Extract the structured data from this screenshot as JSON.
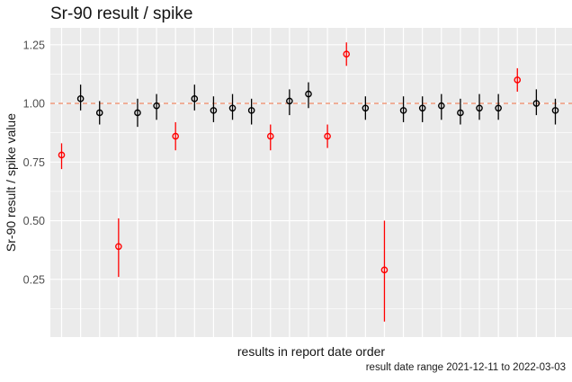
{
  "chart_data": {
    "type": "scatter",
    "title": "Sr-90 result / spike",
    "xlabel": "results in report date order",
    "ylabel": "Sr-90 result / spike value",
    "caption": "result date range 2021-12-11 to 2022-03-03",
    "y_ticks": [
      1.25,
      1.0,
      0.75,
      0.5,
      0.25
    ],
    "y_tick_labels": [
      "1.25",
      "1.00",
      "0.75",
      "0.50",
      "0.25"
    ],
    "ylim": [
      0.0,
      1.32
    ],
    "x_count": 27,
    "grid": "on",
    "legend": "none",
    "reference_line": {
      "y": 1.0,
      "style": "dashed",
      "color": "#F09372"
    },
    "points": [
      {
        "x": 1,
        "y": 0.78,
        "ymin": 0.72,
        "ymax": 0.83,
        "group": "red"
      },
      {
        "x": 2,
        "y": 1.02,
        "ymin": 0.97,
        "ymax": 1.08,
        "group": "black"
      },
      {
        "x": 3,
        "y": 0.96,
        "ymin": 0.91,
        "ymax": 1.01,
        "group": "black"
      },
      {
        "x": 4,
        "y": 0.39,
        "ymin": 0.26,
        "ymax": 0.51,
        "group": "red"
      },
      {
        "x": 5,
        "y": 0.96,
        "ymin": 0.9,
        "ymax": 1.02,
        "group": "black"
      },
      {
        "x": 6,
        "y": 0.99,
        "ymin": 0.93,
        "ymax": 1.04,
        "group": "black"
      },
      {
        "x": 7,
        "y": 0.86,
        "ymin": 0.8,
        "ymax": 0.92,
        "group": "red"
      },
      {
        "x": 8,
        "y": 1.02,
        "ymin": 0.97,
        "ymax": 1.08,
        "group": "black"
      },
      {
        "x": 9,
        "y": 0.97,
        "ymin": 0.92,
        "ymax": 1.03,
        "group": "black"
      },
      {
        "x": 10,
        "y": 0.98,
        "ymin": 0.93,
        "ymax": 1.04,
        "group": "black"
      },
      {
        "x": 11,
        "y": 0.97,
        "ymin": 0.91,
        "ymax": 1.02,
        "group": "black"
      },
      {
        "x": 12,
        "y": 0.86,
        "ymin": 0.8,
        "ymax": 0.91,
        "group": "red"
      },
      {
        "x": 13,
        "y": 1.01,
        "ymin": 0.95,
        "ymax": 1.06,
        "group": "black"
      },
      {
        "x": 14,
        "y": 1.04,
        "ymin": 0.98,
        "ymax": 1.09,
        "group": "black"
      },
      {
        "x": 15,
        "y": 0.86,
        "ymin": 0.81,
        "ymax": 0.91,
        "group": "red"
      },
      {
        "x": 16,
        "y": 1.21,
        "ymin": 1.16,
        "ymax": 1.26,
        "group": "red"
      },
      {
        "x": 17,
        "y": 0.98,
        "ymin": 0.93,
        "ymax": 1.03,
        "group": "black"
      },
      {
        "x": 18,
        "y": 0.29,
        "ymin": 0.07,
        "ymax": 0.5,
        "group": "red"
      },
      {
        "x": 19,
        "y": 0.97,
        "ymin": 0.92,
        "ymax": 1.03,
        "group": "black"
      },
      {
        "x": 20,
        "y": 0.98,
        "ymin": 0.92,
        "ymax": 1.03,
        "group": "black"
      },
      {
        "x": 21,
        "y": 0.99,
        "ymin": 0.93,
        "ymax": 1.04,
        "group": "black"
      },
      {
        "x": 22,
        "y": 0.96,
        "ymin": 0.91,
        "ymax": 1.02,
        "group": "black"
      },
      {
        "x": 23,
        "y": 0.98,
        "ymin": 0.93,
        "ymax": 1.04,
        "group": "black"
      },
      {
        "x": 24,
        "y": 0.98,
        "ymin": 0.93,
        "ymax": 1.04,
        "group": "black"
      },
      {
        "x": 25,
        "y": 1.1,
        "ymin": 1.05,
        "ymax": 1.15,
        "group": "red"
      },
      {
        "x": 26,
        "y": 1.0,
        "ymin": 0.95,
        "ymax": 1.06,
        "group": "black"
      },
      {
        "x": 27,
        "y": 0.97,
        "ymin": 0.91,
        "ymax": 1.02,
        "group": "black"
      }
    ]
  },
  "colors": {
    "background": "#FFFFFF",
    "panel_bg": "#EBEBEB",
    "grid": "#FFFFFF",
    "point_normal": "#000000",
    "point_outlier": "#FF0000",
    "reference_line": "#F09372",
    "tick_text": "#4D4D4D",
    "text": "#141414"
  }
}
